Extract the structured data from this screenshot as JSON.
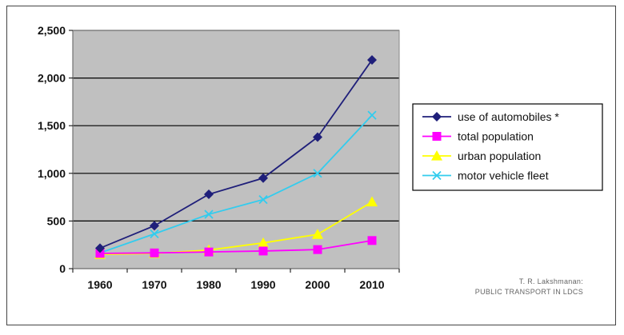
{
  "chart_data": {
    "type": "line",
    "title": "",
    "xlabel": "",
    "ylabel": "",
    "categories": [
      "1960",
      "1970",
      "1980",
      "1990",
      "2000",
      "2010"
    ],
    "ylim": [
      0,
      2500
    ],
    "yticks": [
      0,
      500,
      1000,
      1500,
      2000,
      2500
    ],
    "ytick_labels": [
      "0",
      "500",
      "1,000",
      "1,500",
      "2,000",
      "2,500"
    ],
    "grid": "horizontal",
    "plot_background": "#c0c0c0",
    "legend_position": "right",
    "series": [
      {
        "name": "use of automobiles *",
        "color": "#1f1f7a",
        "marker": "diamond",
        "values": [
          215,
          450,
          780,
          950,
          1380,
          2190
        ]
      },
      {
        "name": "total population",
        "color": "#ff00ff",
        "marker": "square",
        "values": [
          160,
          165,
          175,
          185,
          200,
          295
        ]
      },
      {
        "name": "urban population",
        "color": "#ffff00",
        "marker": "triangle",
        "values": [
          150,
          160,
          195,
          270,
          360,
          700
        ]
      },
      {
        "name": "motor vehicle fleet",
        "color": "#33ccee",
        "marker": "x",
        "values": [
          165,
          365,
          570,
          725,
          1000,
          1610
        ]
      }
    ],
    "source_note": [
      "T. R. Lakshmanan:",
      "PUBLIC TRANSPORT IN LDCS"
    ]
  }
}
